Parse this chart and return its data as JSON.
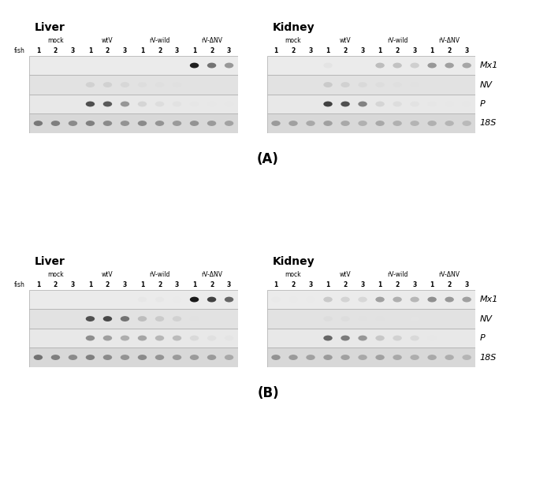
{
  "figure_width": 6.8,
  "figure_height": 6.32,
  "gene_labels": [
    "Mx1",
    "NV",
    "P",
    "18S"
  ],
  "group_labels": [
    "mock",
    "wtV",
    "rV-wild",
    "rV-ΔNV"
  ],
  "panels": {
    "A": {
      "liver": {
        "Mx1": [
          0,
          0,
          0,
          0,
          0,
          0,
          0.08,
          0.07,
          0.06,
          0.92,
          0.62,
          0.52
        ],
        "NV": [
          0,
          0,
          0,
          0.28,
          0.28,
          0.24,
          0.18,
          0.16,
          0.14,
          0,
          0,
          0
        ],
        "P": [
          0,
          0,
          0,
          0.72,
          0.68,
          0.52,
          0.28,
          0.22,
          0.18,
          0.12,
          0.1,
          0.1
        ],
        "18S": [
          0.6,
          0.58,
          0.55,
          0.58,
          0.55,
          0.52,
          0.55,
          0.52,
          0.5,
          0.52,
          0.5,
          0.47
        ]
      },
      "kidney": {
        "Mx1": [
          0,
          0,
          0,
          0.18,
          0.05,
          0,
          0.4,
          0.38,
          0.32,
          0.52,
          0.5,
          0.48
        ],
        "NV": [
          0,
          0,
          0,
          0.32,
          0.28,
          0.22,
          0.18,
          0.16,
          0.12,
          0,
          0,
          0
        ],
        "P": [
          0,
          0,
          0,
          0.78,
          0.72,
          0.58,
          0.28,
          0.22,
          0.18,
          0.12,
          0.1,
          0.1
        ],
        "18S": [
          0.5,
          0.48,
          0.45,
          0.48,
          0.45,
          0.42,
          0.45,
          0.42,
          0.4,
          0.42,
          0.4,
          0.38
        ]
      }
    },
    "B": {
      "liver": {
        "Mx1": [
          0,
          0,
          0,
          0.05,
          0.08,
          0,
          0.14,
          0.14,
          0.1,
          0.95,
          0.78,
          0.65
        ],
        "NV": [
          0,
          0,
          0,
          0.72,
          0.75,
          0.62,
          0.38,
          0.32,
          0.28,
          0.12,
          0.1,
          0.1
        ],
        "P": [
          0,
          0,
          0,
          0.55,
          0.5,
          0.45,
          0.48,
          0.42,
          0.4,
          0.25,
          0.2,
          0.15
        ],
        "18S": [
          0.62,
          0.58,
          0.55,
          0.58,
          0.55,
          0.52,
          0.55,
          0.52,
          0.5,
          0.5,
          0.5,
          0.45
        ]
      },
      "kidney": {
        "Mx1": [
          0.12,
          0.1,
          0.1,
          0.35,
          0.3,
          0.28,
          0.5,
          0.45,
          0.42,
          0.55,
          0.52,
          0.5
        ],
        "NV": [
          0,
          0,
          0,
          0.18,
          0.18,
          0.12,
          0.12,
          0.1,
          0.08,
          0,
          0,
          0
        ],
        "P": [
          0,
          0,
          0,
          0.65,
          0.6,
          0.52,
          0.35,
          0.3,
          0.25,
          0.1,
          0.08,
          0.05
        ],
        "18S": [
          0.52,
          0.5,
          0.48,
          0.5,
          0.48,
          0.45,
          0.48,
          0.45,
          0.43,
          0.45,
          0.43,
          0.4
        ]
      }
    }
  }
}
